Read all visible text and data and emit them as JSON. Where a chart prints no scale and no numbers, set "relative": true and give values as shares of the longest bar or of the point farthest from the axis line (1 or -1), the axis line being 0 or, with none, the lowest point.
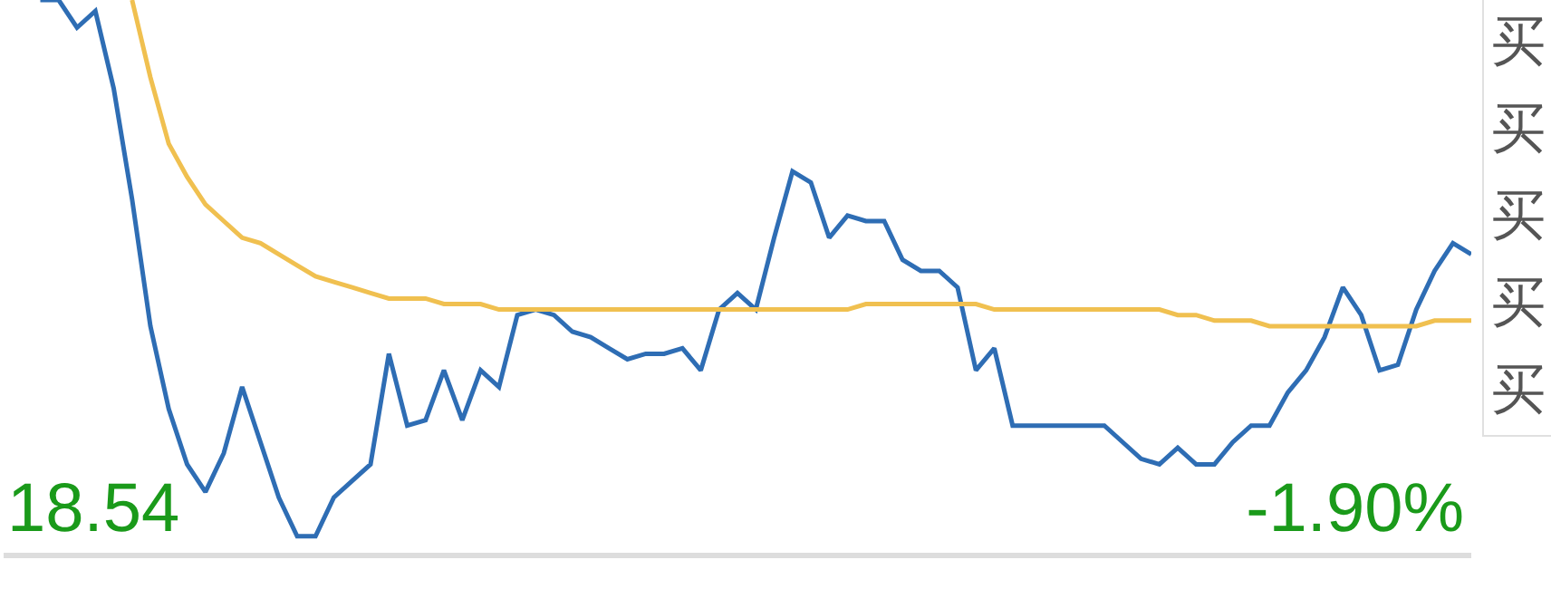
{
  "chart_data": {
    "type": "line",
    "relative": true,
    "categories": [
      null,
      null,
      null,
      null,
      null,
      null,
      null,
      null,
      null,
      null,
      null,
      null,
      null,
      null,
      null,
      null,
      null,
      null,
      null,
      null,
      null,
      null,
      null,
      null,
      null,
      null,
      null,
      null,
      null,
      null,
      null,
      null,
      null,
      null,
      null,
      null,
      null,
      null,
      null,
      null,
      null,
      null,
      null,
      null,
      null,
      null,
      null,
      null,
      null,
      null,
      null,
      null,
      null,
      null,
      null,
      null,
      null,
      null,
      null,
      null,
      null,
      null,
      null,
      null,
      null,
      null,
      null,
      null,
      null,
      null,
      null,
      null,
      null,
      null,
      null,
      null,
      null,
      null,
      null,
      null,
      null
    ],
    "marker": "none",
    "line_style": "solid",
    "annotations": [
      "18.54",
      "-1.90%",
      "买",
      "买",
      "买",
      "买",
      "买"
    ],
    "series": [
      {
        "color": "#2e6db4",
        "values": [
          null,
          null,
          1,
          1,
          0.95,
          0.98,
          0.84,
          0.64,
          0.41,
          0.26,
          0.16,
          0.11,
          0.18,
          0.3,
          0.2,
          0.1,
          0.03,
          0.03,
          0.1,
          0.13,
          0.16,
          0.36,
          0.23,
          0.24,
          0.33,
          0.24,
          0.33,
          0.3,
          0.43,
          0.44,
          0.43,
          0.4,
          0.39,
          0.37,
          0.35,
          0.36,
          0.36,
          0.37,
          0.33,
          0.44,
          0.47,
          0.44,
          0.57,
          0.69,
          0.67,
          0.57,
          0.61,
          0.6,
          0.6,
          0.53,
          0.51,
          0.51,
          0.48,
          0.33,
          0.37,
          0.23,
          0.23,
          0.23,
          0.23,
          0.23,
          0.23,
          0.2,
          0.17,
          0.16,
          0.19,
          0.16,
          0.16,
          0.2,
          0.23,
          0.23,
          0.29,
          0.33,
          0.39,
          0.48,
          0.43,
          0.33,
          0.34,
          0.44,
          0.51,
          0.56,
          0.54
        ]
      },
      {
        "color": "#f0c050",
        "values": [
          null,
          null,
          null,
          null,
          null,
          null,
          null,
          1,
          0.86,
          0.74,
          0.68,
          0.63,
          0.6,
          0.57,
          0.56,
          0.54,
          0.52,
          0.5,
          0.49,
          0.48,
          0.47,
          0.46,
          0.46,
          0.46,
          0.45,
          0.45,
          0.45,
          0.44,
          0.44,
          0.44,
          0.44,
          0.44,
          0.44,
          0.44,
          0.44,
          0.44,
          0.44,
          0.44,
          0.44,
          0.44,
          0.44,
          0.44,
          0.44,
          0.44,
          0.44,
          0.44,
          0.44,
          0.45,
          0.45,
          0.45,
          0.45,
          0.45,
          0.45,
          0.45,
          0.44,
          0.44,
          0.44,
          0.44,
          0.44,
          0.44,
          0.44,
          0.44,
          0.44,
          0.44,
          0.43,
          0.43,
          0.42,
          0.42,
          0.42,
          0.41,
          0.41,
          0.41,
          0.41,
          0.41,
          0.41,
          0.41,
          0.41,
          0.41,
          0.42,
          0.42,
          0.42
        ]
      }
    ]
  }
}
